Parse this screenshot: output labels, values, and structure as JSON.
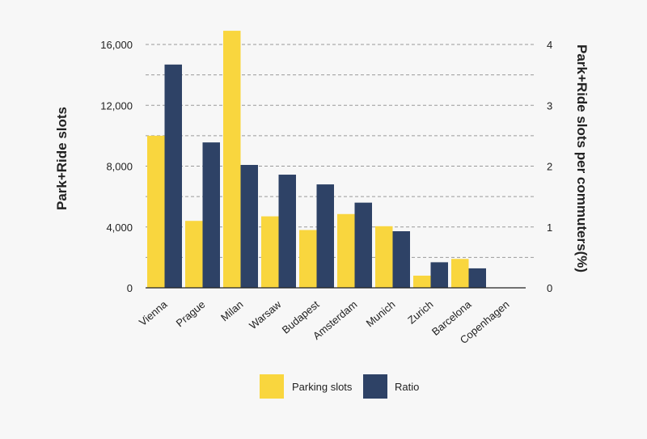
{
  "chart_data": {
    "type": "bar",
    "title": "",
    "categories": [
      "Vienna",
      "Prague",
      "Milan",
      "Warsaw",
      "Budapest",
      "Amsterdam",
      "Munich",
      "Zurich",
      "Barcelona",
      "Copenhagen"
    ],
    "series": [
      {
        "name": "Parking slots",
        "axis": "left",
        "color": "#f9d63e",
        "values": [
          10000,
          4400,
          16900,
          4700,
          3800,
          4850,
          4050,
          800,
          1900,
          0
        ]
      },
      {
        "name": "Ratio",
        "axis": "right",
        "color": "#2e4266",
        "values": [
          3.67,
          2.39,
          2.02,
          1.86,
          1.7,
          1.4,
          0.93,
          0.42,
          0.32,
          0
        ]
      }
    ],
    "ylabel": "Park+Ride slots",
    "y2label": "Park+Ride slots per commuters(%)",
    "ylim": [
      0,
      16000
    ],
    "y2lim": [
      0,
      4
    ],
    "yticks": [
      0,
      4000,
      8000,
      12000,
      16000
    ],
    "ytick_labels": [
      "0",
      "4,000",
      "8,000",
      "12,000",
      "16,000"
    ],
    "y2ticks": [
      0,
      1,
      2,
      3,
      4
    ],
    "y2tick_labels": [
      "0",
      "1",
      "2",
      "3",
      "4"
    ],
    "grid": true,
    "grid_style": "dashed",
    "legend": "bottom-center",
    "legend_labels": [
      "Parking slots",
      "Ratio"
    ]
  }
}
